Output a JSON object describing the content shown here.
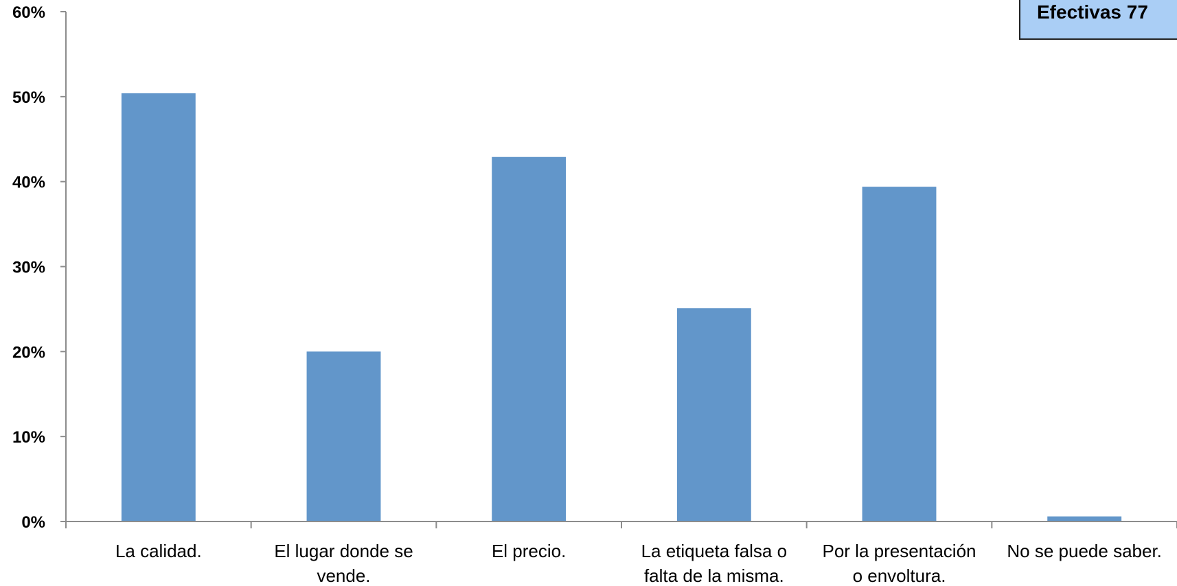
{
  "badge": {
    "text": "Efectivas 77"
  },
  "chart_data": {
    "type": "bar",
    "categories": [
      [
        "La calidad."
      ],
      [
        "El lugar donde se",
        "vende."
      ],
      [
        "El precio."
      ],
      [
        "La etiqueta falsa o",
        "falta de la misma."
      ],
      [
        "Por la presentación",
        "o envoltura."
      ],
      [
        "No se puede saber."
      ]
    ],
    "values": [
      50.4,
      20.0,
      42.9,
      25.1,
      39.4,
      0.6
    ],
    "ylim": [
      0,
      60
    ],
    "yticks": [
      "0%",
      "10%",
      "20%",
      "30%",
      "40%",
      "50%",
      "60%"
    ],
    "bar_color": "#6296ca",
    "axis_color": "#8c8c8c",
    "grid": false
  }
}
